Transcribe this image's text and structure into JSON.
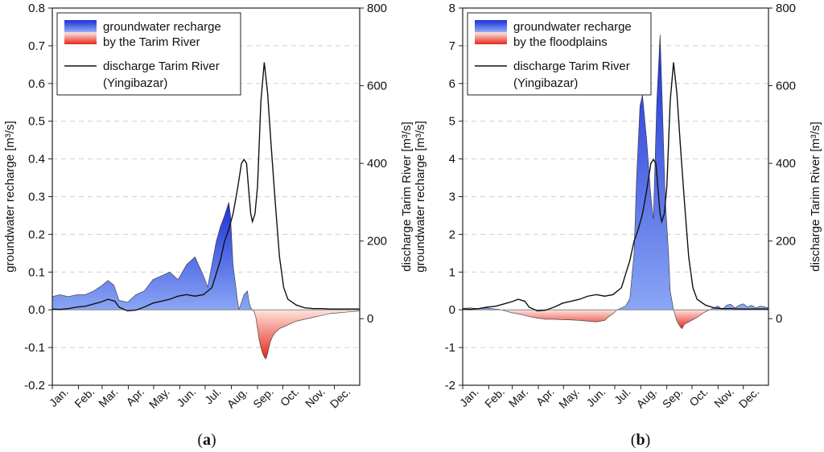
{
  "chart_data": [
    {
      "type": "area",
      "panel_label": "a",
      "ylabel_left": "groundwater recharge [m³/s]",
      "ylabel_right": "discharge Tarim River [m³/s]",
      "ylim_left": [
        -0.2,
        0.8
      ],
      "ylim_right": [
        -171.4,
        800
      ],
      "yticks_left": [
        "-0.2",
        "-0.1",
        "0.0",
        "0.1",
        "0.2",
        "0.3",
        "0.4",
        "0.5",
        "0.6",
        "0.7",
        "0.8"
      ],
      "yticks_right": [
        "0",
        "200",
        "400",
        "600",
        "800"
      ],
      "months": [
        "Jan.",
        "Feb.",
        "Mar.",
        "Apr.",
        "May.",
        "Jun.",
        "Jul.",
        "Aug.",
        "Sep.",
        "Oct.",
        "Nov.",
        "Dec."
      ],
      "legend": {
        "recharge": [
          "groundwater recharge",
          "by the Tarim River"
        ],
        "discharge": [
          "discharge Tarim River",
          "(Yingibazar)"
        ]
      },
      "colors": {
        "positive": "#1c2fd6",
        "positive_light": "#8aa6f4",
        "negative": "#e5261c",
        "negative_light": "#fde3dc",
        "discharge": "#111111"
      },
      "recharge_series": {
        "name": "groundwater recharge (m³/s)",
        "day": [
          1,
          10,
          20,
          30,
          40,
          50,
          60,
          67,
          74,
          80,
          90,
          100,
          110,
          120,
          130,
          140,
          150,
          160,
          170,
          180,
          185,
          190,
          195,
          200,
          205,
          210,
          212,
          215,
          220,
          222,
          225,
          228,
          232,
          234,
          236,
          238,
          240,
          242,
          244,
          246,
          248,
          250,
          252,
          254,
          256,
          258,
          260,
          262,
          265,
          270,
          275,
          280,
          290,
          300,
          310,
          320,
          330,
          340,
          350,
          360,
          365
        ],
        "values": [
          0.035,
          0.04,
          0.035,
          0.04,
          0.04,
          0.05,
          0.065,
          0.078,
          0.065,
          0.025,
          0.02,
          0.04,
          0.05,
          0.08,
          0.09,
          0.1,
          0.08,
          0.12,
          0.14,
          0.09,
          0.06,
          0.12,
          0.18,
          0.22,
          0.25,
          0.285,
          0.25,
          0.12,
          0.03,
          0.0,
          0.02,
          0.04,
          0.05,
          0.02,
          0.005,
          0.0,
          -0.005,
          -0.02,
          -0.05,
          -0.08,
          -0.1,
          -0.115,
          -0.125,
          -0.13,
          -0.115,
          -0.095,
          -0.08,
          -0.07,
          -0.06,
          -0.05,
          -0.045,
          -0.04,
          -0.03,
          -0.025,
          -0.02,
          -0.015,
          -0.01,
          -0.008,
          -0.006,
          -0.004,
          -0.003
        ]
      },
      "discharge_series": {
        "name": "discharge Tarim River (m³/s)",
        "day": [
          1,
          10,
          20,
          30,
          40,
          50,
          60,
          67,
          75,
          80,
          90,
          100,
          110,
          120,
          130,
          140,
          150,
          160,
          170,
          180,
          190,
          195,
          200,
          205,
          210,
          215,
          220,
          225,
          228,
          231,
          234,
          236,
          238,
          241,
          244,
          248,
          252,
          256,
          260,
          265,
          270,
          275,
          280,
          290,
          300,
          310,
          320,
          330,
          340,
          350,
          360,
          365
        ],
        "values": [
          25,
          24,
          26,
          30,
          32,
          38,
          44,
          50,
          45,
          30,
          20,
          22,
          30,
          40,
          45,
          50,
          58,
          62,
          58,
          62,
          80,
          115,
          150,
          200,
          230,
          270,
          330,
          400,
          410,
          400,
          320,
          270,
          250,
          270,
          340,
          560,
          660,
          580,
          450,
          300,
          160,
          80,
          50,
          35,
          28,
          26,
          26,
          25,
          25,
          25,
          25,
          25
        ]
      }
    },
    {
      "type": "area",
      "panel_label": "b",
      "ylabel_left": "groundwater recharge [m³/s]",
      "ylabel_right": "discharge Tarim River [m³/s]",
      "ylim_left": [
        -2,
        8
      ],
      "ylim_right": [
        -171.4,
        800
      ],
      "yticks_left": [
        "-2",
        "-1",
        "0",
        "1",
        "2",
        "3",
        "4",
        "5",
        "6",
        "7",
        "8"
      ],
      "yticks_right": [
        "0",
        "200",
        "400",
        "600",
        "800"
      ],
      "months": [
        "Jan.",
        "Feb.",
        "Mar.",
        "Apr.",
        "May.",
        "Jun.",
        "Jul.",
        "Aug.",
        "Sep.",
        "Oct.",
        "Nov.",
        "Dec."
      ],
      "legend": {
        "recharge": [
          "groundwater recharge",
          "by the floodplains"
        ],
        "discharge": [
          "discharge Tarim River",
          "(Yingibazar)"
        ]
      },
      "colors": {
        "positive": "#1c2fd6",
        "positive_light": "#8aa6f4",
        "negative": "#e5261c",
        "negative_light": "#fde3dc",
        "discharge": "#111111"
      },
      "recharge_series": {
        "name": "groundwater recharge (m³/s)",
        "day": [
          1,
          10,
          20,
          30,
          40,
          45,
          50,
          55,
          60,
          70,
          80,
          90,
          100,
          110,
          120,
          130,
          140,
          150,
          160,
          170,
          175,
          180,
          185,
          190,
          195,
          200,
          205,
          208,
          212,
          215,
          220,
          225,
          228,
          232,
          236,
          239,
          242,
          246,
          248,
          252,
          256,
          260,
          262,
          265,
          268,
          272,
          276,
          280,
          285,
          290,
          295,
          300,
          305,
          310,
          315,
          320,
          325,
          330,
          335,
          340,
          345,
          350,
          355,
          360,
          365
        ],
        "values": [
          0.04,
          0.05,
          0.03,
          0.05,
          0.02,
          0.01,
          -0.02,
          -0.05,
          -0.08,
          -0.12,
          -0.18,
          -0.22,
          -0.25,
          -0.25,
          -0.26,
          -0.27,
          -0.28,
          -0.3,
          -0.32,
          -0.28,
          -0.18,
          -0.1,
          0.0,
          0.05,
          0.1,
          0.3,
          1.5,
          3.5,
          5.4,
          5.7,
          4.5,
          3.0,
          2.4,
          5.5,
          7.3,
          5.2,
          3.0,
          1.5,
          0.5,
          0.0,
          -0.3,
          -0.45,
          -0.5,
          -0.38,
          -0.35,
          -0.3,
          -0.25,
          -0.2,
          -0.12,
          -0.05,
          0.0,
          0.05,
          0.1,
          0.0,
          0.12,
          0.15,
          0.05,
          0.12,
          0.16,
          0.08,
          0.12,
          0.05,
          0.1,
          0.08,
          0.05
        ]
      },
      "discharge_series": {
        "name": "discharge Tarim River (m³/s)",
        "day": [
          1,
          10,
          20,
          30,
          40,
          50,
          60,
          67,
          75,
          80,
          90,
          100,
          110,
          120,
          130,
          140,
          150,
          160,
          170,
          180,
          190,
          195,
          200,
          205,
          210,
          215,
          220,
          225,
          228,
          231,
          234,
          236,
          238,
          241,
          244,
          248,
          252,
          256,
          260,
          265,
          270,
          275,
          280,
          290,
          300,
          310,
          320,
          330,
          340,
          350,
          360,
          365
        ],
        "values": [
          25,
          24,
          26,
          30,
          32,
          38,
          44,
          50,
          45,
          30,
          20,
          22,
          30,
          40,
          45,
          50,
          58,
          62,
          58,
          62,
          80,
          115,
          150,
          200,
          230,
          270,
          330,
          400,
          410,
          400,
          320,
          270,
          250,
          270,
          340,
          560,
          660,
          580,
          450,
          300,
          160,
          80,
          50,
          35,
          28,
          26,
          26,
          25,
          25,
          25,
          25,
          25
        ]
      }
    }
  ]
}
